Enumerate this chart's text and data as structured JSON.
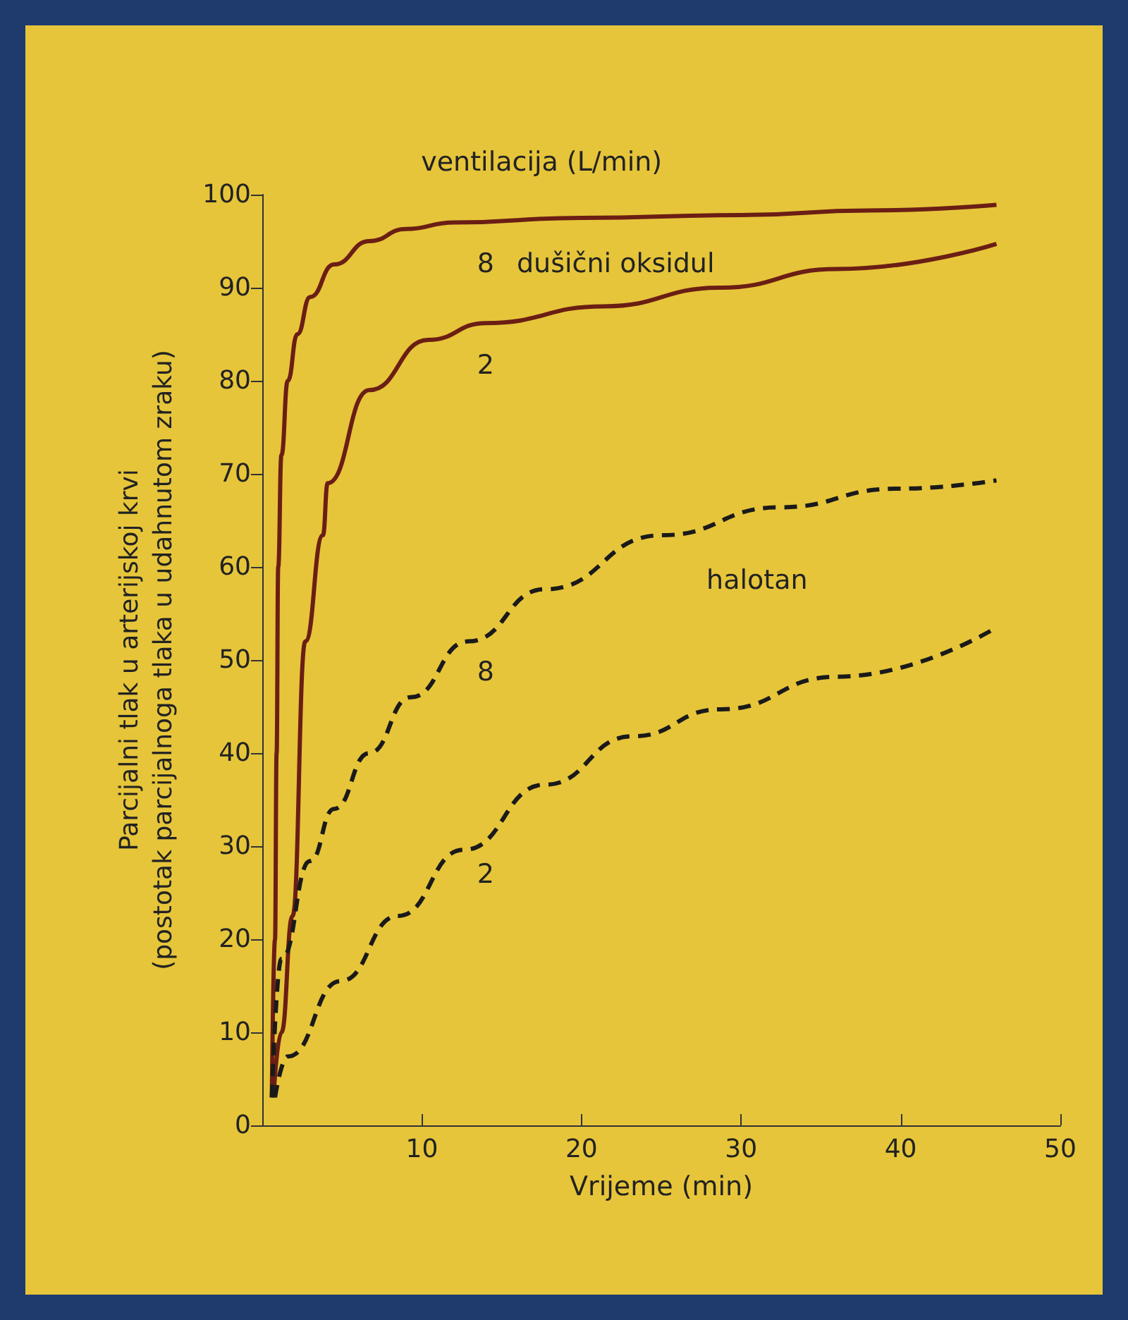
{
  "chart_data": {
    "type": "line",
    "xlabel": "Vrijeme (min)",
    "ylabel": "Parcijalni tlak u arterijskoj krvi\n(postotak parcijalnoga tlaka u udahnutom zraku)",
    "xlim": [
      0,
      50
    ],
    "xticks": [
      10,
      20,
      30,
      40,
      50
    ],
    "ylim": [
      0,
      100
    ],
    "yticks": [
      0,
      10,
      20,
      30,
      40,
      50,
      60,
      70,
      80,
      90,
      100
    ],
    "grid": false,
    "marker": "none",
    "series": [
      {
        "name": "8",
        "color": "#6b1e14",
        "line_style": "solid",
        "x": [
          0.6,
          0.8,
          0.9,
          1.0,
          1.2,
          1.6,
          2.2,
          3,
          4.5,
          6.7,
          9,
          12,
          20,
          30,
          38,
          46
        ],
        "values": [
          3,
          20,
          40,
          60,
          72,
          80,
          85,
          89,
          92.5,
          95,
          96.3,
          97,
          97.5,
          97.8,
          98.3,
          98.9
        ]
      },
      {
        "name": "2",
        "color": "#6b1e14",
        "line_style": "solid",
        "x": [
          0.7,
          1.2,
          1.9,
          2.7,
          3.8,
          4.1,
          6.7,
          10.4,
          14,
          21.4,
          28.7,
          36,
          46
        ],
        "values": [
          3,
          10,
          22.5,
          52,
          63.4,
          69,
          79,
          84.4,
          86.2,
          88,
          90,
          92,
          94.7
        ]
      },
      {
        "name": "8",
        "color": "#1a1a1a",
        "line_style": "dashed",
        "x": [
          0.6,
          1.2,
          3,
          4.5,
          6.7,
          9.3,
          12.9,
          17.7,
          25,
          32.4,
          39.7,
          46
        ],
        "values": [
          3,
          17.9,
          28.4,
          34,
          40,
          46,
          52,
          57.6,
          63.4,
          66.4,
          68.4,
          69.3
        ]
      },
      {
        "name": "2",
        "color": "#1a1a1a",
        "line_style": "dashed",
        "x": [
          0.8,
          1.6,
          4.9,
          8.5,
          12.6,
          17.7,
          23.2,
          28.7,
          36,
          46
        ],
        "values": [
          3,
          7.4,
          15.5,
          22.5,
          29.6,
          36.6,
          41.8,
          44.7,
          48.2,
          53.5
        ]
      }
    ],
    "annotations": [
      "ventilacija (L/min)",
      "dušični oksidul",
      "halotan"
    ]
  }
}
